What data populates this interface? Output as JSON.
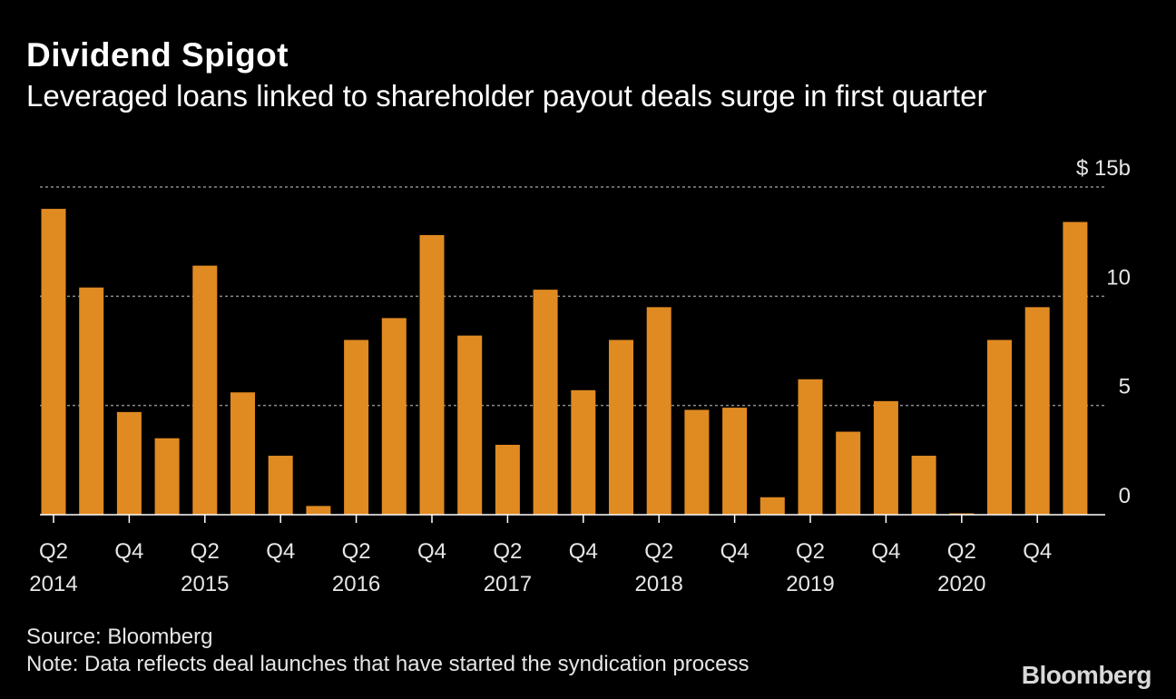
{
  "header": {
    "title": "Dividend Spigot",
    "subtitle": "Leveraged loans linked to shareholder payout deals surge in first quarter"
  },
  "footer": {
    "source": "Source: Bloomberg",
    "note": "Note: Data reflects deal launches that have started the syndication process",
    "logo": "Bloomberg"
  },
  "colors": {
    "background": "#000000",
    "bar": "#e08a22",
    "grid": "#8a8a8a",
    "text": "#e6e6e6"
  },
  "chart_data": {
    "type": "bar",
    "title": "Dividend Spigot",
    "subtitle": "Leveraged loans linked to shareholder payout deals surge in first quarter",
    "xlabel": "",
    "ylabel": "",
    "y_unit_label": "$ 15b",
    "ylim": [
      0,
      15
    ],
    "yticks": [
      0,
      5,
      10,
      15
    ],
    "ytick_labels": [
      "0",
      "5",
      "10",
      "$ 15b"
    ],
    "grid": "horizontal dotted",
    "categories": [
      "Q2 2014",
      "Q3 2014",
      "Q4 2014",
      "Q1 2015",
      "Q2 2015",
      "Q3 2015",
      "Q4 2015",
      "Q1 2016",
      "Q2 2016",
      "Q3 2016",
      "Q4 2016",
      "Q1 2017",
      "Q2 2017",
      "Q3 2017",
      "Q4 2017",
      "Q1 2018",
      "Q2 2018",
      "Q3 2018",
      "Q4 2018",
      "Q1 2019",
      "Q2 2019",
      "Q3 2019",
      "Q4 2019",
      "Q1 2020",
      "Q2 2020",
      "Q3 2020",
      "Q4 2020",
      "Q1 2021"
    ],
    "values": [
      14.0,
      10.4,
      4.7,
      3.5,
      11.4,
      5.6,
      2.7,
      0.4,
      8.0,
      9.0,
      12.8,
      8.2,
      3.2,
      10.3,
      5.7,
      8.0,
      9.5,
      4.8,
      4.9,
      0.8,
      6.2,
      3.8,
      5.2,
      2.7,
      0.05,
      8.0,
      9.5,
      13.4
    ],
    "x_tick_labels": [
      {
        "index": 0,
        "quarter": "Q2",
        "year": "2014"
      },
      {
        "index": 2,
        "quarter": "Q4",
        "year": ""
      },
      {
        "index": 4,
        "quarter": "Q2",
        "year": "2015"
      },
      {
        "index": 6,
        "quarter": "Q4",
        "year": ""
      },
      {
        "index": 8,
        "quarter": "Q2",
        "year": "2016"
      },
      {
        "index": 10,
        "quarter": "Q4",
        "year": ""
      },
      {
        "index": 12,
        "quarter": "Q2",
        "year": "2017"
      },
      {
        "index": 14,
        "quarter": "Q4",
        "year": ""
      },
      {
        "index": 16,
        "quarter": "Q2",
        "year": "2018"
      },
      {
        "index": 18,
        "quarter": "Q4",
        "year": ""
      },
      {
        "index": 20,
        "quarter": "Q2",
        "year": "2019"
      },
      {
        "index": 22,
        "quarter": "Q4",
        "year": ""
      },
      {
        "index": 24,
        "quarter": "Q2",
        "year": "2020"
      },
      {
        "index": 26,
        "quarter": "Q4",
        "year": ""
      }
    ]
  }
}
